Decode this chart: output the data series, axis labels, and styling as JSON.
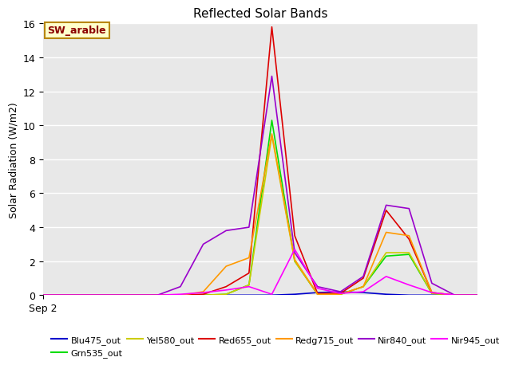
{
  "title": "Reflected Solar Bands",
  "ylabel": "Solar Radiation (W/m2)",
  "xlabel": "Sep 2",
  "annotation": "SW_arable",
  "ylim": [
    0,
    16
  ],
  "xlim": [
    0,
    19
  ],
  "series": [
    {
      "name": "Blu475_out",
      "color": "#0000cc",
      "values": [
        0,
        0,
        0,
        0,
        0,
        0,
        0,
        0,
        0,
        0,
        0,
        0.05,
        0.15,
        0.2,
        0.15,
        0.05,
        0,
        0,
        0,
        0
      ]
    },
    {
      "name": "Grn535_out",
      "color": "#00dd00",
      "values": [
        0,
        0,
        0,
        0,
        0,
        0,
        0,
        0,
        0.05,
        0.6,
        10.3,
        2.0,
        0.05,
        0.05,
        0.5,
        2.3,
        2.4,
        0.1,
        0,
        0
      ]
    },
    {
      "name": "Yel580_out",
      "color": "#cccc00",
      "values": [
        0,
        0,
        0,
        0,
        0,
        0,
        0,
        0,
        0.05,
        0.6,
        9.4,
        2.0,
        0.05,
        0.05,
        0.5,
        2.5,
        2.5,
        0.1,
        0,
        0
      ]
    },
    {
      "name": "Red655_out",
      "color": "#dd0000",
      "values": [
        0,
        0,
        0,
        0,
        0,
        0,
        0,
        0.05,
        0.5,
        1.3,
        15.8,
        3.5,
        0.1,
        0.1,
        1.0,
        5.0,
        3.3,
        0.15,
        0,
        0
      ]
    },
    {
      "name": "Redg715_out",
      "color": "#ff9900",
      "values": [
        0,
        0,
        0,
        0,
        0,
        0,
        0,
        0.2,
        1.7,
        2.2,
        9.5,
        2.1,
        0.05,
        0.05,
        0.5,
        3.7,
        3.5,
        0.15,
        0,
        0
      ]
    },
    {
      "name": "Nir840_out",
      "color": "#9900cc",
      "values": [
        0,
        0,
        0,
        0,
        0,
        0,
        0.5,
        3.0,
        3.8,
        4.0,
        12.9,
        2.5,
        0.5,
        0.2,
        1.1,
        5.3,
        5.1,
        0.7,
        0,
        0
      ]
    },
    {
      "name": "Nir945_out",
      "color": "#ff00ff",
      "values": [
        0,
        0,
        0,
        0,
        0,
        0,
        0.05,
        0.15,
        0.3,
        0.5,
        0.05,
        2.7,
        0.4,
        0.1,
        0.2,
        1.1,
        0.6,
        0.15,
        0,
        0
      ]
    }
  ],
  "background_color": "#e8e8e8",
  "grid_color": "#ffffff",
  "title_fontsize": 11,
  "ylabel_fontsize": 9,
  "tick_fontsize": 9,
  "legend_fontsize": 8
}
